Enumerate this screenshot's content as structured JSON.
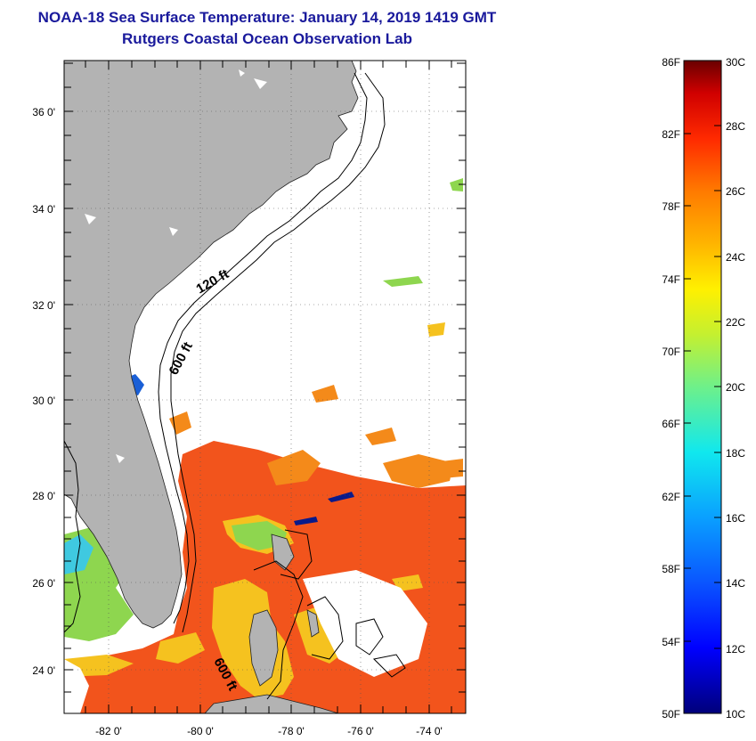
{
  "header": {
    "title_line1": "NOAA-18 Sea Surface Temperature:  January 14, 2019 1419 GMT",
    "title_line2": "Rutgers Coastal Ocean Observation Lab"
  },
  "map": {
    "lat_labels": [
      "36 0'",
      "34 0'",
      "32 0'",
      "30 0'",
      "28 0'",
      "26 0'",
      "24 0'"
    ],
    "lon_labels": [
      "-82 0'",
      "-80 0'",
      "-78 0'",
      "-76 0'",
      "-74 0'"
    ],
    "contour_labels": [
      "120 ft",
      "600 ft",
      "600 ft"
    ],
    "colors": {
      "land": "#b3b3b3",
      "ocean_mask": "#ffffff",
      "warm": "#f2541c",
      "orange": "#f48a1a",
      "yellow": "#f5c21f",
      "green": "#8ed64f",
      "cyan": "#3fc9e0",
      "blue": "#1a5fd6",
      "navy": "#0a1a8a"
    }
  },
  "colorbar": {
    "fahrenheit_labels": [
      "86F",
      "82F",
      "78F",
      "74F",
      "70F",
      "66F",
      "62F",
      "58F",
      "54F",
      "50F"
    ],
    "celsius_labels": [
      "30C",
      "28C",
      "26C",
      "24C",
      "22C",
      "20C",
      "18C",
      "16C",
      "14C",
      "12C",
      "10C"
    ]
  }
}
